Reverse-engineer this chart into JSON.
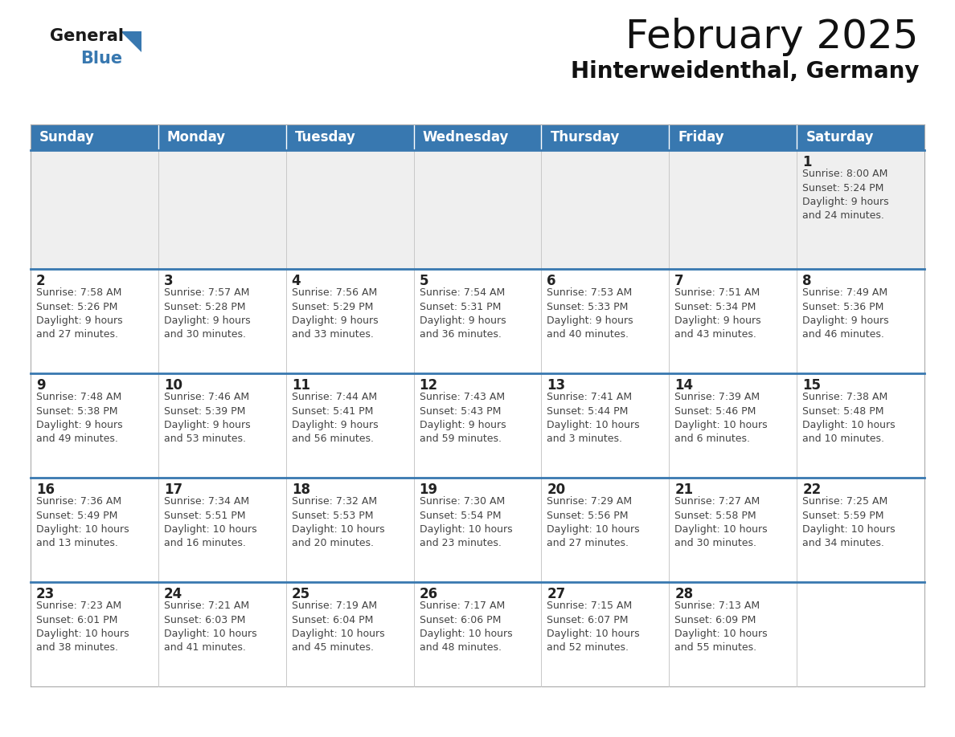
{
  "title": "February 2025",
  "subtitle": "Hinterweidenthal, Germany",
  "header_color": "#3878b0",
  "header_text_color": "#ffffff",
  "cell_bg_week1": "#efefef",
  "cell_bg_normal": "#ffffff",
  "separator_color": "#3878b0",
  "day_number_color": "#222222",
  "day_text_color": "#444444",
  "days_of_week": [
    "Sunday",
    "Monday",
    "Tuesday",
    "Wednesday",
    "Thursday",
    "Friday",
    "Saturday"
  ],
  "calendar": [
    [
      {
        "day": "",
        "info": ""
      },
      {
        "day": "",
        "info": ""
      },
      {
        "day": "",
        "info": ""
      },
      {
        "day": "",
        "info": ""
      },
      {
        "day": "",
        "info": ""
      },
      {
        "day": "",
        "info": ""
      },
      {
        "day": "1",
        "info": "Sunrise: 8:00 AM\nSunset: 5:24 PM\nDaylight: 9 hours\nand 24 minutes."
      }
    ],
    [
      {
        "day": "2",
        "info": "Sunrise: 7:58 AM\nSunset: 5:26 PM\nDaylight: 9 hours\nand 27 minutes."
      },
      {
        "day": "3",
        "info": "Sunrise: 7:57 AM\nSunset: 5:28 PM\nDaylight: 9 hours\nand 30 minutes."
      },
      {
        "day": "4",
        "info": "Sunrise: 7:56 AM\nSunset: 5:29 PM\nDaylight: 9 hours\nand 33 minutes."
      },
      {
        "day": "5",
        "info": "Sunrise: 7:54 AM\nSunset: 5:31 PM\nDaylight: 9 hours\nand 36 minutes."
      },
      {
        "day": "6",
        "info": "Sunrise: 7:53 AM\nSunset: 5:33 PM\nDaylight: 9 hours\nand 40 minutes."
      },
      {
        "day": "7",
        "info": "Sunrise: 7:51 AM\nSunset: 5:34 PM\nDaylight: 9 hours\nand 43 minutes."
      },
      {
        "day": "8",
        "info": "Sunrise: 7:49 AM\nSunset: 5:36 PM\nDaylight: 9 hours\nand 46 minutes."
      }
    ],
    [
      {
        "day": "9",
        "info": "Sunrise: 7:48 AM\nSunset: 5:38 PM\nDaylight: 9 hours\nand 49 minutes."
      },
      {
        "day": "10",
        "info": "Sunrise: 7:46 AM\nSunset: 5:39 PM\nDaylight: 9 hours\nand 53 minutes."
      },
      {
        "day": "11",
        "info": "Sunrise: 7:44 AM\nSunset: 5:41 PM\nDaylight: 9 hours\nand 56 minutes."
      },
      {
        "day": "12",
        "info": "Sunrise: 7:43 AM\nSunset: 5:43 PM\nDaylight: 9 hours\nand 59 minutes."
      },
      {
        "day": "13",
        "info": "Sunrise: 7:41 AM\nSunset: 5:44 PM\nDaylight: 10 hours\nand 3 minutes."
      },
      {
        "day": "14",
        "info": "Sunrise: 7:39 AM\nSunset: 5:46 PM\nDaylight: 10 hours\nand 6 minutes."
      },
      {
        "day": "15",
        "info": "Sunrise: 7:38 AM\nSunset: 5:48 PM\nDaylight: 10 hours\nand 10 minutes."
      }
    ],
    [
      {
        "day": "16",
        "info": "Sunrise: 7:36 AM\nSunset: 5:49 PM\nDaylight: 10 hours\nand 13 minutes."
      },
      {
        "day": "17",
        "info": "Sunrise: 7:34 AM\nSunset: 5:51 PM\nDaylight: 10 hours\nand 16 minutes."
      },
      {
        "day": "18",
        "info": "Sunrise: 7:32 AM\nSunset: 5:53 PM\nDaylight: 10 hours\nand 20 minutes."
      },
      {
        "day": "19",
        "info": "Sunrise: 7:30 AM\nSunset: 5:54 PM\nDaylight: 10 hours\nand 23 minutes."
      },
      {
        "day": "20",
        "info": "Sunrise: 7:29 AM\nSunset: 5:56 PM\nDaylight: 10 hours\nand 27 minutes."
      },
      {
        "day": "21",
        "info": "Sunrise: 7:27 AM\nSunset: 5:58 PM\nDaylight: 10 hours\nand 30 minutes."
      },
      {
        "day": "22",
        "info": "Sunrise: 7:25 AM\nSunset: 5:59 PM\nDaylight: 10 hours\nand 34 minutes."
      }
    ],
    [
      {
        "day": "23",
        "info": "Sunrise: 7:23 AM\nSunset: 6:01 PM\nDaylight: 10 hours\nand 38 minutes."
      },
      {
        "day": "24",
        "info": "Sunrise: 7:21 AM\nSunset: 6:03 PM\nDaylight: 10 hours\nand 41 minutes."
      },
      {
        "day": "25",
        "info": "Sunrise: 7:19 AM\nSunset: 6:04 PM\nDaylight: 10 hours\nand 45 minutes."
      },
      {
        "day": "26",
        "info": "Sunrise: 7:17 AM\nSunset: 6:06 PM\nDaylight: 10 hours\nand 48 minutes."
      },
      {
        "day": "27",
        "info": "Sunrise: 7:15 AM\nSunset: 6:07 PM\nDaylight: 10 hours\nand 52 minutes."
      },
      {
        "day": "28",
        "info": "Sunrise: 7:13 AM\nSunset: 6:09 PM\nDaylight: 10 hours\nand 55 minutes."
      },
      {
        "day": "",
        "info": ""
      }
    ]
  ],
  "logo_general_color": "#1a1a1a",
  "logo_blue_color": "#3878b0",
  "logo_triangle_color": "#3878b0"
}
